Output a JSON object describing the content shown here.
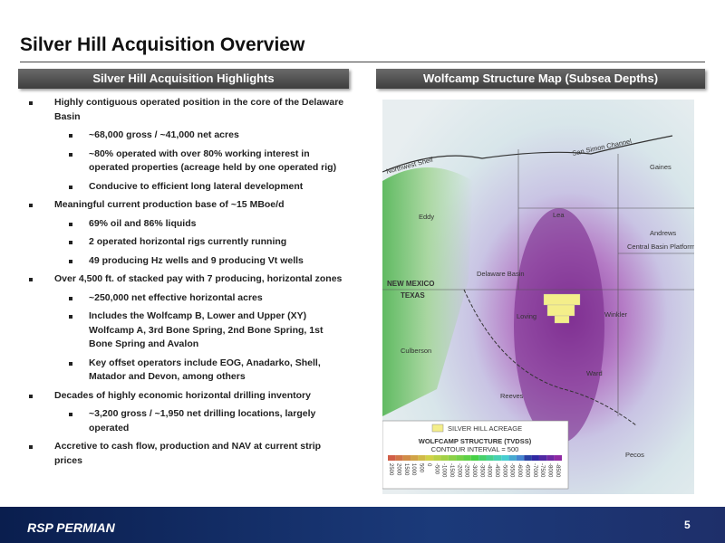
{
  "header": {
    "title": "Silver Hill Acquisition Overview"
  },
  "left": {
    "heading": "Silver Hill Acquisition Highlights",
    "bullets": [
      {
        "text": "Highly contiguous operated position in the core of the Delaware Basin",
        "sub": [
          "~68,000 gross / ~41,000 net acres",
          "~80% operated with over 80% working interest in operated properties (acreage held by one operated rig)",
          "Conducive to efficient long lateral development"
        ]
      },
      {
        "text": "Meaningful current production base of ~15 MBoe/d",
        "sub": [
          "69% oil and 86% liquids",
          "2 operated horizontal rigs currently running",
          "49 producing Hz wells and 9 producing Vt wells"
        ]
      },
      {
        "text": "Over 4,500 ft. of stacked pay with 7 producing, horizontal zones",
        "sub": [
          "~250,000 net effective horizontal acres",
          "Includes the Wolfcamp B, Lower and Upper (XY) Wolfcamp A, 3rd Bone Spring, 2nd Bone Spring, 1st Bone Spring and Avalon",
          "Key offset operators include EOG, Anadarko, Shell, Matador and Devon, among others"
        ]
      },
      {
        "text": "Decades of highly economic horizontal drilling inventory",
        "sub": [
          "~3,200 gross / ~1,950 net drilling locations, largely operated"
        ]
      },
      {
        "text": "Accretive to cash flow, production and NAV at current strip prices",
        "sub": []
      }
    ]
  },
  "right": {
    "heading": "Wolfcamp Structure Map (Subsea Depths)",
    "map": {
      "labels": [
        "Northwest Shelf",
        "San Simon Channel",
        "Gaines",
        "Eddy",
        "Lea",
        "Andrews",
        "Central Basin Platform",
        "Delaware Basin",
        "NEW MEXICO",
        "TEXAS",
        "Loving",
        "Winkler",
        "Culberson",
        "Ward",
        "Reeves",
        "Pecos"
      ],
      "legend": {
        "acreage": "SILVER HILL ACREAGE",
        "title": "WOLFCAMP STRUCTURE (TVDSS)",
        "interval": "CONTOUR INTERVAL = 500",
        "scale": [
          "2500",
          "2000",
          "1500",
          "1000",
          "500",
          "0",
          "-500",
          "-1000",
          "-1500",
          "-2000",
          "-2500",
          "-3000",
          "-3500",
          "-4000",
          "-4500",
          "-5000",
          "-5500",
          "-6000",
          "-6500",
          "-7000",
          "-7500",
          "-8000",
          "-8500"
        ]
      }
    }
  },
  "footer": {
    "logo": "RSP PERMIAN",
    "page": "5"
  }
}
